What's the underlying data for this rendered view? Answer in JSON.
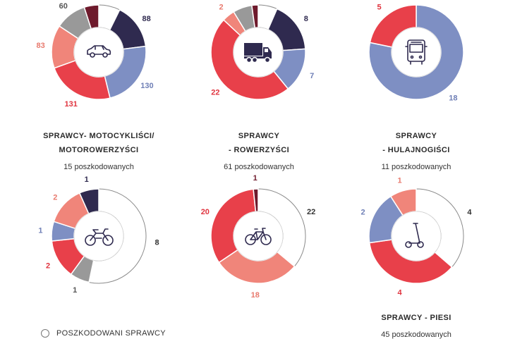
{
  "colors": {
    "white": "#ffffff",
    "navy": "#2f2a4f",
    "periwinkle": "#7e8fc3",
    "red": "#e8404a",
    "salmon": "#f0857a",
    "grey": "#999999",
    "maroon": "#6e1a2c"
  },
  "chart_data": [
    {
      "type": "pie",
      "title": "",
      "subtitle": "",
      "slices": [
        {
          "value": 41,
          "color": "white"
        },
        {
          "value": 88,
          "color": "navy"
        },
        {
          "value": 130,
          "color": "periwinkle"
        },
        {
          "value": 131,
          "color": "red"
        },
        {
          "value": 83,
          "color": "salmon"
        },
        {
          "value": 60,
          "color": "grey"
        },
        {
          "value": 28,
          "color": "maroon"
        }
      ],
      "icon": "car-icon"
    },
    {
      "type": "pie",
      "title": "",
      "subtitle": "",
      "slices": [
        {
          "value": 3,
          "color": "white"
        },
        {
          "value": 8,
          "color": "navy"
        },
        {
          "value": 7,
          "color": "periwinkle"
        },
        {
          "value": 22,
          "color": "red"
        },
        {
          "value": 2,
          "color": "salmon"
        },
        {
          "value": 3,
          "color": "grey"
        },
        {
          "value": 1,
          "color": "maroon"
        }
      ],
      "icon": "truck-icon"
    },
    {
      "type": "pie",
      "title": "",
      "subtitle": "",
      "slices": [
        {
          "value": 18,
          "color": "periwinkle"
        },
        {
          "value": 5,
          "color": "red"
        }
      ],
      "icon": "bus-icon"
    },
    {
      "type": "pie",
      "title": "SPRAWCY- MOTOCYKLIŚCI/\nMOTOROWERZYŚCI",
      "subtitle": "15 poszkodowanych",
      "slices": [
        {
          "value": 8,
          "color": "white"
        },
        {
          "value": 1,
          "color": "grey"
        },
        {
          "value": 2,
          "color": "red"
        },
        {
          "value": 1,
          "color": "periwinkle"
        },
        {
          "value": 2,
          "color": "salmon"
        },
        {
          "value": 1,
          "color": "navy"
        }
      ],
      "icon": "motorcycle-icon"
    },
    {
      "type": "pie",
      "title": "SPRAWCY\n- ROWERZYŚCI",
      "subtitle": "61 poszkodowanych",
      "slices": [
        {
          "value": 22,
          "color": "white"
        },
        {
          "value": 18,
          "color": "salmon"
        },
        {
          "value": 20,
          "color": "red"
        },
        {
          "value": 1,
          "color": "maroon"
        }
      ],
      "icon": "bicycle-icon"
    },
    {
      "type": "pie",
      "title": "SPRAWCY\n- HULAJNOGIŚCI",
      "subtitle": "11 poszkodowanych",
      "slices": [
        {
          "value": 4,
          "color": "white"
        },
        {
          "value": 4,
          "color": "red"
        },
        {
          "value": 2,
          "color": "periwinkle"
        },
        {
          "value": 1,
          "color": "salmon"
        }
      ],
      "icon": "scooter-icon"
    }
  ],
  "pedestrians": {
    "title": "SPRAWCY - PIESI",
    "subtitle": "45 poszkodowanych"
  },
  "legend": [
    {
      "label": "POSZKODOWANI SPRAWCY",
      "color": "white"
    }
  ]
}
